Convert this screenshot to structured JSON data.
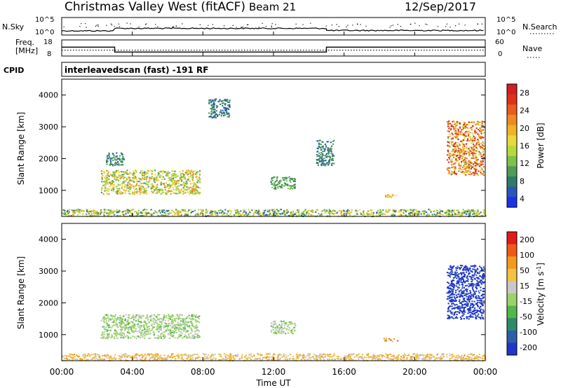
{
  "header": {
    "station": "Christmas Valley West (fitACF)",
    "beam": "Beam 21",
    "date": "12/Sep/2017"
  },
  "nsky_panel": {
    "left_label": "N.Sky",
    "left_ticks": [
      "10^5",
      "10^0"
    ],
    "right_label": "N.Search",
    "right_ticks": [
      "10^5",
      "10^0"
    ]
  },
  "freq_panel": {
    "left_label_line1": "Freq.",
    "left_label_line2": "[MHz]",
    "left_ticks": [
      "18",
      "8"
    ],
    "right_label": "Nave",
    "right_ticks": [
      "60",
      "0"
    ]
  },
  "cpid_panel": {
    "label": "CPID",
    "text": "interleavedscan (fast) -191 RF"
  },
  "axes": {
    "xlabel": "Time UT",
    "x_ticks": [
      "00:00",
      "04:00",
      "08:00",
      "12:00",
      "16:00",
      "20:00",
      "00:00"
    ],
    "ylabel": "Slant Range [km]",
    "y_ticks": [
      "1000",
      "2000",
      "3000",
      "4000"
    ]
  },
  "colorbars": {
    "power": {
      "label": "Power [dB]",
      "ticks": [
        "28",
        "24",
        "20",
        "16",
        "12",
        "8",
        "4"
      ],
      "colors": [
        "#1a33e6",
        "#2a57b8",
        "#2f7a6a",
        "#4f9b58",
        "#7fc24a",
        "#b8d93a",
        "#e9d93a",
        "#f0b228",
        "#ee8a22",
        "#e85d1c",
        "#e0301a",
        "#d21f1f"
      ]
    },
    "velocity": {
      "label_main": "Velocity [m s",
      "label_sup": "-1",
      "label_end": "]",
      "ticks": [
        "200",
        "100",
        "50",
        "15",
        "-15",
        "-50",
        "-100",
        "-200"
      ],
      "colors": [
        "#e31a1c",
        "#f05a16",
        "#f39a1e",
        "#f2c240",
        "#c8c8c8",
        "#9cd26a",
        "#52b848",
        "#2f8a6a",
        "#2a5fa8",
        "#2035c9"
      ]
    }
  },
  "chart_data": [
    {
      "type": "line",
      "title": "N.Sky / N.Search",
      "x_range_hours": [
        0,
        24
      ],
      "y_scale": "log",
      "segments_hours_level": [
        [
          0,
          3,
          1.2
        ],
        [
          3,
          15,
          1.9
        ],
        [
          15,
          24,
          1.3
        ]
      ]
    },
    {
      "type": "line",
      "title": "Freq. [MHz] / Nave",
      "x_range_hours": [
        0,
        24
      ],
      "freq_steps": [
        [
          0,
          3,
          13.5
        ],
        [
          3,
          15,
          10.5
        ],
        [
          15,
          24,
          13.5
        ]
      ],
      "nave_level": 22
    },
    {
      "type": "heatmap",
      "title": "Power [dB]",
      "x_range_hours": [
        0,
        24
      ],
      "y_range_km": [
        180,
        4500
      ],
      "color_range_db": [
        0,
        30
      ],
      "features": [
        {
          "region": "near-range band",
          "t": [
            0,
            24
          ],
          "r": [
            200,
            420
          ],
          "value_db": [
            4,
            20
          ]
        },
        {
          "region": "evening patch",
          "t": [
            2.2,
            7.8
          ],
          "r": [
            900,
            1650
          ],
          "value_db": [
            8,
            22
          ]
        },
        {
          "region": "scatter",
          "t": [
            2.5,
            3.5
          ],
          "r": [
            1800,
            2200
          ],
          "value_db": [
            4,
            10
          ]
        },
        {
          "region": "far patch",
          "t": [
            8.3,
            9.5
          ],
          "r": [
            3300,
            3900
          ],
          "value_db": [
            4,
            8
          ]
        },
        {
          "region": "mid patch",
          "t": [
            11.8,
            13.2
          ],
          "r": [
            1050,
            1450
          ],
          "value_db": [
            6,
            12
          ]
        },
        {
          "region": "mid patch 2",
          "t": [
            14.4,
            15.4
          ],
          "r": [
            1800,
            2600
          ],
          "value_db": [
            4,
            10
          ]
        },
        {
          "region": "small echo",
          "t": [
            18.2,
            19.0
          ],
          "r": [
            800,
            900
          ],
          "value_db": [
            14,
            22
          ]
        },
        {
          "region": "dawn patch",
          "t": [
            21.8,
            23.9
          ],
          "r": [
            1500,
            3200
          ],
          "value_db": [
            12,
            30
          ]
        }
      ]
    },
    {
      "type": "heatmap",
      "title": "Velocity [m s-1]",
      "x_range_hours": [
        0,
        24
      ],
      "y_range_km": [
        180,
        4500
      ],
      "color_range_ms": [
        -200,
        200
      ],
      "features": [
        {
          "region": "near-range band",
          "t": [
            0,
            24
          ],
          "r": [
            200,
            420
          ],
          "value_ms": [
            15,
            100
          ]
        },
        {
          "region": "evening patch",
          "t": [
            2.2,
            7.8
          ],
          "r": [
            900,
            1650
          ],
          "value_ms": [
            -50,
            15
          ]
        },
        {
          "region": "mid patch",
          "t": [
            11.8,
            13.2
          ],
          "r": [
            1050,
            1450
          ],
          "value_ms": [
            -50,
            15
          ]
        },
        {
          "region": "small echo",
          "t": [
            18.2,
            19.0
          ],
          "r": [
            800,
            900
          ],
          "value_ms": [
            -50,
            200
          ]
        },
        {
          "region": "dawn patch",
          "t": [
            21.8,
            23.9
          ],
          "r": [
            1500,
            3200
          ],
          "value_ms": [
            -200,
            -150
          ]
        }
      ]
    }
  ]
}
